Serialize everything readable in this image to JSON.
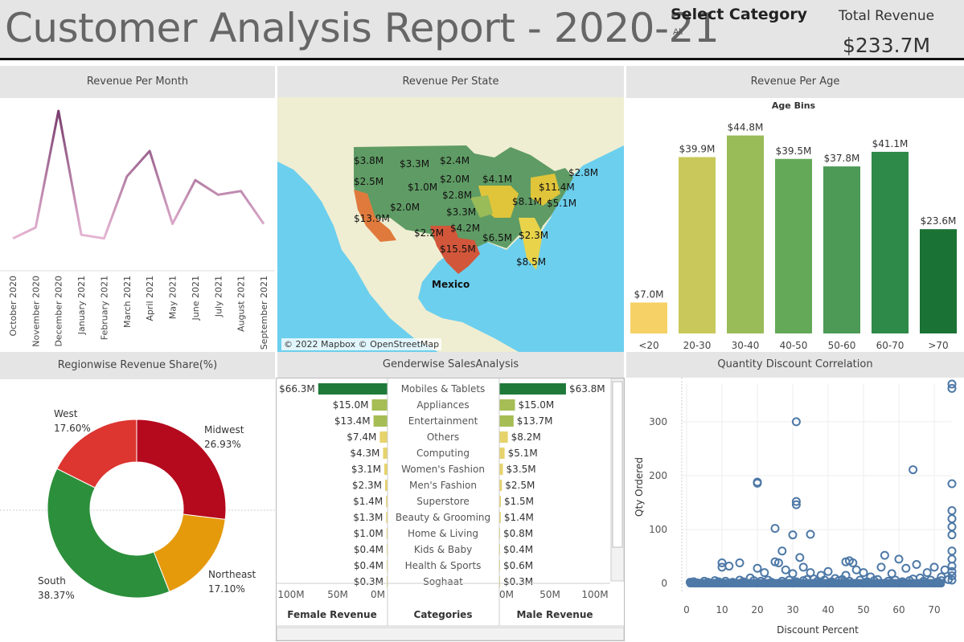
{
  "header": {
    "title": "Customer Analysis Report - 2020-21",
    "select_label": "Select Category",
    "select_value": "All",
    "revenue_label": "Total Revenue",
    "revenue_value": "$233.7M"
  },
  "panels": {
    "month_title": "Revenue Per Month",
    "state_title": "Revenue Per State",
    "age_title": "Revenue Per Age",
    "region_title": "Regionwise Revenue Share(%)",
    "gender_title": "Genderwise SalesAnalysis",
    "scatter_title": "Quantity Discount Correlation"
  },
  "chart_data": [
    {
      "type": "line",
      "categories": [
        "October 2020",
        "November 2020",
        "December 2020",
        "January 2021",
        "February 2021",
        "March 2021",
        "April 2021",
        "May 2021",
        "June 2021",
        "July 2021",
        "August 2021",
        "September 2021"
      ],
      "values": [
        8,
        11,
        43,
        9,
        8,
        25,
        32,
        12,
        24,
        20,
        21,
        12
      ],
      "ylim": [
        0,
        45
      ],
      "colors": [
        "#e6b6d4",
        "#7a3d6e"
      ]
    },
    {
      "type": "bar",
      "xlabel": "Age Bins",
      "categories": [
        "<20",
        "20-30",
        "30-40",
        "40-50",
        "50-60",
        "60-70",
        ">70"
      ],
      "values": [
        7.0,
        39.9,
        44.8,
        39.5,
        37.8,
        41.1,
        23.6
      ],
      "labels": [
        "$7.0M",
        "$39.9M",
        "$44.8M",
        "$39.5M",
        "$37.8M",
        "$41.1M",
        "$23.6M"
      ],
      "colors": [
        "#f5d166",
        "#c8c95a",
        "#99bb58",
        "#64a958",
        "#4c9a56",
        "#2d8a48",
        "#1a7234"
      ],
      "ylim": [
        0,
        48
      ]
    },
    {
      "type": "pie",
      "labels": [
        "Midwest",
        "Northeast",
        "South",
        "West"
      ],
      "values": [
        26.93,
        17.1,
        38.37,
        17.6
      ],
      "value_labels": [
        "26.93%",
        "17.10%",
        "38.37%",
        "17.60%"
      ],
      "colors": [
        "#b5091d",
        "#e59a0c",
        "#2c8f3b",
        "#dd3530"
      ]
    },
    {
      "type": "bar",
      "title": "Genderwise SalesAnalysis",
      "categories": [
        "Mobiles & Tablets",
        "Appliances",
        "Entertainment",
        "Others",
        "Computing",
        "Women's Fashion",
        "Men's Fashion",
        "Superstore",
        "Beauty & Grooming",
        "Home & Living",
        "Kids & Baby",
        "Health & Sports",
        "Soghaat"
      ],
      "series": [
        {
          "name": "Female Revenue",
          "values": [
            66.3,
            15.0,
            13.4,
            7.4,
            4.3,
            3.1,
            2.3,
            1.4,
            1.3,
            1.0,
            0.4,
            0.4,
            0.3
          ],
          "labels": [
            "$66.3M",
            "$15.0M",
            "$13.4M",
            "$7.4M",
            "$4.3M",
            "$3.1M",
            "$2.3M",
            "$1.4M",
            "$1.3M",
            "$1.0M",
            "$0.4M",
            "$0.4M",
            "$0.3M"
          ]
        },
        {
          "name": "Male Revenue",
          "values": [
            63.8,
            15.0,
            13.7,
            8.2,
            5.1,
            3.5,
            2.5,
            1.5,
            1.4,
            0.8,
            0.4,
            0.6,
            0.3
          ],
          "labels": [
            "$63.8M",
            "$15.0M",
            "$13.7M",
            "$8.2M",
            "$5.1M",
            "$3.5M",
            "$2.5M",
            "$1.5M",
            "$1.4M",
            "$0.8M",
            "$0.4M",
            "$0.6M",
            "$0.3M"
          ]
        }
      ],
      "axis_left": [
        "100M",
        "50M",
        "0M"
      ],
      "axis_right": [
        "0M",
        "50M",
        "100M"
      ],
      "middle_header": "Categories",
      "xlim": [
        0,
        100
      ]
    },
    {
      "type": "scatter",
      "xlabel": "Discount Percent",
      "ylabel": "Qty Ordered",
      "xlim": [
        0,
        75
      ],
      "ylim": [
        0,
        370
      ],
      "xticks": [
        0,
        10,
        20,
        30,
        40,
        50,
        60,
        70
      ],
      "yticks": [
        0,
        100,
        200,
        300
      ],
      "color": "#4e79a7",
      "points": [
        [
          31,
          300
        ],
        [
          20,
          188
        ],
        [
          20,
          186
        ],
        [
          31,
          152
        ],
        [
          31,
          146
        ],
        [
          64,
          211
        ],
        [
          75,
          362
        ],
        [
          75,
          370
        ],
        [
          75,
          185
        ],
        [
          75,
          135
        ],
        [
          75,
          120
        ],
        [
          75,
          105
        ],
        [
          75,
          90
        ],
        [
          75,
          60
        ],
        [
          75,
          45
        ],
        [
          75,
          32
        ],
        [
          75,
          22
        ],
        [
          75,
          14
        ],
        [
          75,
          6
        ],
        [
          25,
          102
        ],
        [
          27,
          60
        ],
        [
          30,
          90
        ],
        [
          35,
          91
        ],
        [
          32,
          48
        ],
        [
          10,
          38
        ],
        [
          10,
          30
        ],
        [
          12,
          32
        ],
        [
          15,
          38
        ],
        [
          20,
          28
        ],
        [
          22,
          20
        ],
        [
          25,
          40
        ],
        [
          26,
          38
        ],
        [
          28,
          25
        ],
        [
          30,
          18
        ],
        [
          33,
          30
        ],
        [
          35,
          20
        ],
        [
          38,
          15
        ],
        [
          40,
          22
        ],
        [
          45,
          40
        ],
        [
          46,
          42
        ],
        [
          47,
          38
        ],
        [
          48,
          25
        ],
        [
          50,
          20
        ],
        [
          55,
          30
        ],
        [
          56,
          52
        ],
        [
          60,
          45
        ],
        [
          62,
          28
        ],
        [
          65,
          35
        ],
        [
          68,
          20
        ],
        [
          70,
          30
        ],
        [
          73,
          25
        ],
        [
          45,
          15
        ],
        [
          52,
          12
        ],
        [
          58,
          18
        ],
        [
          66,
          10
        ],
        [
          72,
          12
        ],
        [
          42,
          9
        ],
        [
          36,
          8
        ],
        [
          18,
          10
        ],
        [
          15,
          6
        ],
        [
          8,
          5
        ],
        [
          5,
          4
        ],
        [
          2,
          3
        ],
        [
          1,
          2
        ],
        [
          3,
          1
        ],
        [
          6,
          2
        ],
        [
          9,
          3
        ],
        [
          11,
          4
        ],
        [
          13,
          2
        ],
        [
          16,
          3
        ],
        [
          19,
          5
        ],
        [
          21,
          4
        ],
        [
          23,
          6
        ],
        [
          24,
          2
        ],
        [
          27,
          4
        ],
        [
          29,
          6
        ],
        [
          31,
          3
        ],
        [
          33,
          5
        ],
        [
          34,
          7
        ],
        [
          37,
          4
        ],
        [
          39,
          6
        ],
        [
          41,
          3
        ],
        [
          43,
          5
        ],
        [
          44,
          7
        ],
        [
          46,
          4
        ],
        [
          49,
          6
        ],
        [
          51,
          3
        ],
        [
          53,
          5
        ],
        [
          54,
          7
        ],
        [
          57,
          4
        ],
        [
          59,
          6
        ],
        [
          61,
          3
        ],
        [
          63,
          5
        ],
        [
          64,
          8
        ],
        [
          67,
          4
        ],
        [
          69,
          6
        ],
        [
          71,
          3
        ],
        [
          72,
          5
        ],
        [
          74,
          7
        ]
      ]
    }
  ],
  "map": {
    "labels": [
      "$3.8M",
      "$3.3M",
      "$2.4M",
      "$2.5M",
      "$2.0M",
      "$1.0M",
      "$4.1M",
      "$2.8M",
      "$11.4M",
      "$2.8M",
      "$13.9M",
      "$2.0M",
      "$3.3M",
      "$8.1M",
      "$5.1M",
      "$2.2M",
      "$4.2M",
      "$6.5M",
      "$2.3M",
      "$15.5M",
      "$8.5M"
    ],
    "place": "Mexico",
    "credit": "© 2022 Mapbox © OpenStreetMap"
  }
}
